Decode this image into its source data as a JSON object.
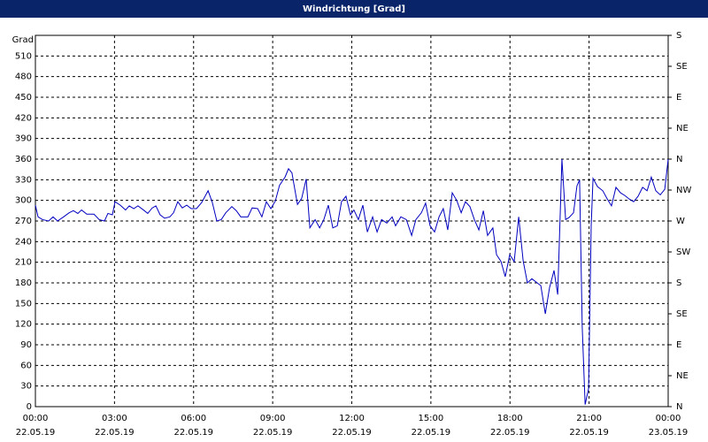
{
  "chart_data": {
    "type": "line",
    "title": "Windrichtung [Grad]",
    "y_label": "Grad",
    "x": [
      0,
      0.1,
      0.27,
      0.5,
      0.67,
      0.84,
      1.07,
      1.28,
      1.44,
      1.61,
      1.75,
      1.95,
      2.22,
      2.42,
      2.62,
      2.75,
      2.92,
      3.02,
      3.22,
      3.42,
      3.56,
      3.73,
      3.89,
      4.1,
      4.26,
      4.43,
      4.57,
      4.73,
      4.9,
      5.1,
      5.24,
      5.4,
      5.57,
      5.74,
      5.91,
      6.11,
      6.31,
      6.55,
      6.71,
      6.88,
      7.05,
      7.22,
      7.45,
      7.62,
      7.79,
      8.06,
      8.22,
      8.43,
      8.59,
      8.76,
      8.93,
      9.1,
      9.26,
      9.47,
      9.6,
      9.73,
      9.94,
      10.1,
      10.27,
      10.41,
      10.61,
      10.78,
      10.94,
      11.11,
      11.28,
      11.45,
      11.61,
      11.78,
      11.95,
      12.08,
      12.25,
      12.42,
      12.59,
      12.79,
      12.96,
      13.13,
      13.33,
      13.53,
      13.66,
      13.86,
      14.07,
      14.27,
      14.43,
      14.64,
      14.8,
      14.97,
      15.14,
      15.31,
      15.47,
      15.64,
      15.81,
      15.98,
      16.15,
      16.31,
      16.48,
      16.65,
      16.82,
      16.99,
      17.15,
      17.35,
      17.49,
      17.66,
      17.82,
      17.99,
      18.16,
      18.33,
      18.5,
      18.66,
      18.83,
      19,
      19.17,
      19.34,
      19.5,
      19.67,
      19.81,
      19.97,
      20.11,
      20.24,
      20.41,
      20.54,
      20.64,
      20.74,
      20.85,
      20.98,
      21.08,
      21.15,
      21.32,
      21.52,
      21.69,
      21.85,
      22.02,
      22.19,
      22.36,
      22.52,
      22.69,
      22.86,
      23.03,
      23.2,
      23.36,
      23.53,
      23.7,
      23.87,
      24
    ],
    "series": [
      {
        "color": "#0000c0",
        "values": [
          293,
          276,
          272,
          270,
          276,
          270,
          276,
          282,
          285,
          281,
          286,
          280,
          280,
          272,
          270,
          281,
          279,
          298,
          293,
          286,
          292,
          288,
          292,
          286,
          281,
          289,
          292,
          279,
          274,
          276,
          282,
          298,
          289,
          293,
          288,
          288,
          297,
          314,
          297,
          270,
          272,
          282,
          291,
          285,
          276,
          276,
          289,
          288,
          276,
          298,
          288,
          299,
          322,
          334,
          346,
          340,
          294,
          303,
          331,
          260,
          272,
          260,
          272,
          293,
          260,
          263,
          298,
          306,
          279,
          286,
          272,
          293,
          254,
          276,
          254,
          272,
          267,
          276,
          263,
          276,
          272,
          249,
          272,
          282,
          296,
          263,
          254,
          276,
          288,
          257,
          311,
          300,
          282,
          298,
          291,
          272,
          257,
          285,
          249,
          260,
          221,
          211,
          189,
          221,
          211,
          276,
          212,
          180,
          186,
          181,
          176,
          135,
          173,
          198,
          163,
          360,
          272,
          275,
          282,
          321,
          330,
          116,
          3,
          26,
          263,
          332,
          320,
          314,
          302,
          292,
          319,
          311,
          307,
          302,
          298,
          306,
          319,
          314,
          334,
          314,
          308,
          316,
          360
        ]
      }
    ],
    "xlim": [
      0,
      24
    ],
    "xticks": [
      {
        "value": 0,
        "label": "00:00",
        "date": "22.05.19"
      },
      {
        "value": 3,
        "label": "03:00",
        "date": "22.05.19"
      },
      {
        "value": 6,
        "label": "06:00",
        "date": "22.05.19"
      },
      {
        "value": 9,
        "label": "09:00",
        "date": "22.05.19"
      },
      {
        "value": 12,
        "label": "12:00",
        "date": "22.05.19"
      },
      {
        "value": 15,
        "label": "15:00",
        "date": "22.05.19"
      },
      {
        "value": 18,
        "label": "18:00",
        "date": "22.05.19"
      },
      {
        "value": 21,
        "label": "21:00",
        "date": "22.05.19"
      },
      {
        "value": 24,
        "label": "00:00",
        "date": "23.05.19"
      }
    ],
    "ylim": [
      0,
      540
    ],
    "yticks": [
      0,
      30,
      60,
      90,
      120,
      150,
      180,
      210,
      240,
      270,
      300,
      330,
      360,
      390,
      420,
      450,
      480,
      510
    ],
    "y2lim": [
      0,
      540
    ],
    "y2ticks": [
      {
        "value": 0,
        "label": "N"
      },
      {
        "value": 45,
        "label": "NE"
      },
      {
        "value": 90,
        "label": "E"
      },
      {
        "value": 135,
        "label": "SE"
      },
      {
        "value": 180,
        "label": "S"
      },
      {
        "value": 225,
        "label": "SW"
      },
      {
        "value": 270,
        "label": "W"
      },
      {
        "value": 315,
        "label": "NW"
      },
      {
        "value": 360,
        "label": "N"
      },
      {
        "value": 405,
        "label": "NE"
      },
      {
        "value": 450,
        "label": "E"
      },
      {
        "value": 495,
        "label": "SE"
      },
      {
        "value": 540,
        "label": "S"
      }
    ],
    "grid": true
  }
}
